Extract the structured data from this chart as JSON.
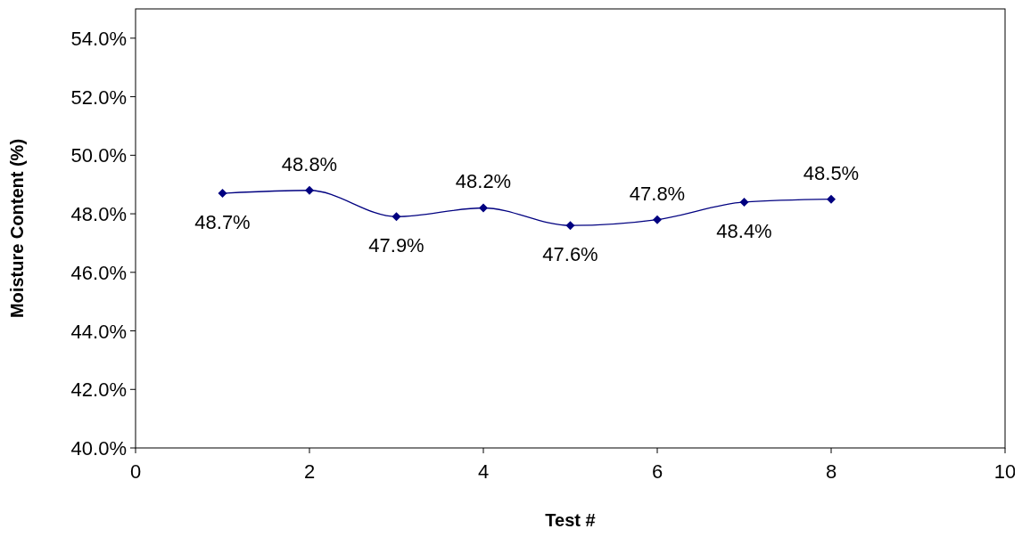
{
  "chart_data": {
    "type": "line",
    "xlabel": "Test #",
    "ylabel": "Moisture Content (%)",
    "x": [
      1,
      2,
      3,
      4,
      5,
      6,
      7,
      8
    ],
    "series": [
      {
        "color": "#000080",
        "values": [
          48.7,
          48.8,
          47.9,
          48.2,
          47.6,
          47.8,
          48.4,
          48.5
        ]
      }
    ],
    "value_labels": [
      "48.7%",
      "48.8%",
      "47.9%",
      "48.2%",
      "47.6%",
      "47.8%",
      "48.4%",
      "48.5%"
    ],
    "xlim": [
      0,
      10
    ],
    "xticks": [
      0,
      2,
      4,
      6,
      8,
      10
    ],
    "ylim": [
      40,
      55
    ],
    "yticks": [
      {
        "value": 40,
        "label": "40.0%"
      },
      {
        "value": 42,
        "label": "42.0%"
      },
      {
        "value": 44,
        "label": "44.0%"
      },
      {
        "value": 46,
        "label": "46.0%"
      },
      {
        "value": 48,
        "label": "48.0%"
      },
      {
        "value": 50,
        "label": "50.0%"
      },
      {
        "value": 52,
        "label": "52.0%"
      },
      {
        "value": 54,
        "label": "54.0%"
      }
    ],
    "marker": "diamond",
    "line_style": "solid"
  }
}
